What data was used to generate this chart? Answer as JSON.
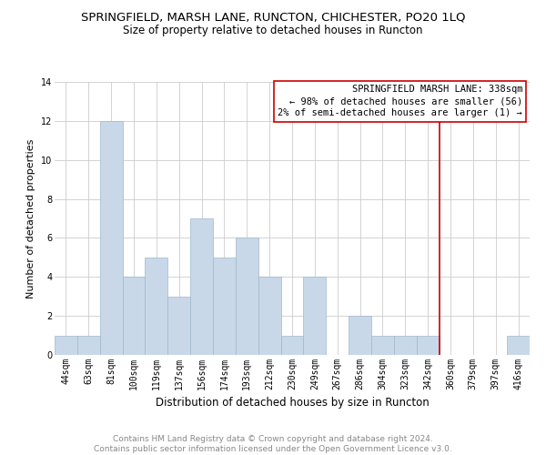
{
  "title": "SPRINGFIELD, MARSH LANE, RUNCTON, CHICHESTER, PO20 1LQ",
  "subtitle": "Size of property relative to detached houses in Runcton",
  "xlabel": "Distribution of detached houses by size in Runcton",
  "ylabel": "Number of detached properties",
  "bin_labels": [
    "44sqm",
    "63sqm",
    "81sqm",
    "100sqm",
    "119sqm",
    "137sqm",
    "156sqm",
    "174sqm",
    "193sqm",
    "212sqm",
    "230sqm",
    "249sqm",
    "267sqm",
    "286sqm",
    "304sqm",
    "323sqm",
    "342sqm",
    "360sqm",
    "379sqm",
    "397sqm",
    "416sqm"
  ],
  "bar_heights": [
    1,
    1,
    12,
    4,
    5,
    3,
    7,
    5,
    6,
    4,
    1,
    4,
    0,
    2,
    1,
    1,
    1,
    0,
    0,
    0,
    1
  ],
  "bar_color": "#c8d8e8",
  "bar_edgecolor": "#a0b8cc",
  "vline_x_index": 16,
  "vline_color": "#cc0000",
  "annotation_text": "SPRINGFIELD MARSH LANE: 338sqm\n← 98% of detached houses are smaller (56)\n2% of semi-detached houses are larger (1) →",
  "annotation_box_edgecolor": "#cc0000",
  "ylim": [
    0,
    14
  ],
  "yticks": [
    0,
    2,
    4,
    6,
    8,
    10,
    12,
    14
  ],
  "grid_color": "#cccccc",
  "footer_text": "Contains HM Land Registry data © Crown copyright and database right 2024.\nContains public sector information licensed under the Open Government Licence v3.0.",
  "title_fontsize": 9.5,
  "subtitle_fontsize": 8.5,
  "annotation_fontsize": 7.5,
  "footer_fontsize": 6.5,
  "xlabel_fontsize": 8.5,
  "ylabel_fontsize": 8,
  "tick_fontsize": 7
}
